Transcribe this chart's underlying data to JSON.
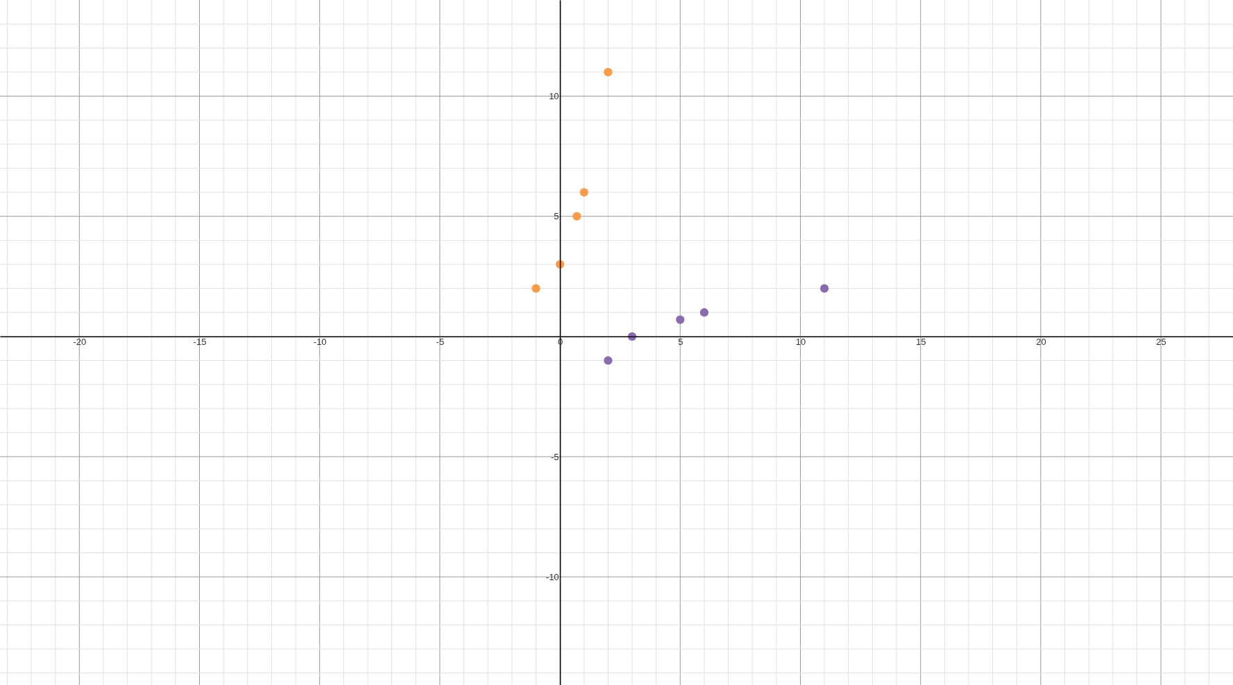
{
  "chart_data": {
    "type": "scatter",
    "series": [
      {
        "color": "#f89c4c",
        "x": [
          2,
          1,
          0.7,
          0,
          -1
        ],
        "values": [
          11,
          6,
          5,
          3,
          2
        ]
      },
      {
        "color": "#8a6bad",
        "x": [
          2,
          3,
          5,
          6,
          11
        ],
        "values": [
          -1,
          0,
          0.7,
          1,
          2
        ]
      }
    ],
    "marker": "circle",
    "xlim": [
      -23.3,
      28
    ],
    "ylim": [
      -14.5,
      14
    ],
    "xticks": [
      {
        "value": -23,
        "label": null
      },
      {
        "value": -22,
        "label": null
      },
      {
        "value": -21,
        "label": null
      },
      -20,
      {
        "value": -19,
        "label": null
      },
      {
        "value": -18,
        "label": null
      },
      {
        "value": -17,
        "label": null
      },
      {
        "value": -16,
        "label": null
      },
      -15,
      {
        "value": -14,
        "label": null
      },
      {
        "value": -13,
        "label": null
      },
      {
        "value": -12,
        "label": null
      },
      {
        "value": -11,
        "label": null
      },
      -10,
      {
        "value": -9,
        "label": null
      },
      {
        "value": -8,
        "label": null
      },
      {
        "value": -7,
        "label": null
      },
      {
        "value": -6,
        "label": null
      },
      -5,
      {
        "value": -4,
        "label": null
      },
      {
        "value": -3,
        "label": null
      },
      {
        "value": -2,
        "label": null
      },
      {
        "value": -1,
        "label": null
      },
      0,
      {
        "value": 1,
        "label": null
      },
      {
        "value": 2,
        "label": null
      },
      {
        "value": 3,
        "label": null
      },
      {
        "value": 4,
        "label": null
      },
      5,
      {
        "value": 6,
        "label": null
      },
      {
        "value": 7,
        "label": null
      },
      {
        "value": 8,
        "label": null
      },
      {
        "value": 9,
        "label": null
      },
      10,
      {
        "value": 11,
        "label": null
      },
      {
        "value": 12,
        "label": null
      },
      {
        "value": 13,
        "label": null
      },
      {
        "value": 14,
        "label": null
      },
      15,
      {
        "value": 16,
        "label": null
      },
      {
        "value": 17,
        "label": null
      },
      {
        "value": 18,
        "label": null
      },
      {
        "value": 19,
        "label": null
      },
      20,
      {
        "value": 21,
        "label": null
      },
      {
        "value": 22,
        "label": null
      },
      {
        "value": 23,
        "label": null
      },
      {
        "value": 24,
        "label": null
      },
      25,
      {
        "value": 26,
        "label": null
      },
      {
        "value": 27,
        "label": null
      }
    ],
    "yticks": [
      {
        "value": -14,
        "label": null
      },
      {
        "value": -13,
        "label": null
      },
      {
        "value": -12,
        "label": null
      },
      {
        "value": -11,
        "label": null
      },
      -10,
      {
        "value": -9,
        "label": null
      },
      {
        "value": -8,
        "label": null
      },
      {
        "value": -7,
        "label": null
      },
      {
        "value": -6,
        "label": null
      },
      -5,
      {
        "value": -4,
        "label": null
      },
      {
        "value": -3,
        "label": null
      },
      {
        "value": -2,
        "label": null
      },
      {
        "value": -1,
        "label": null
      },
      {
        "value": 0,
        "label": null
      },
      {
        "value": 1,
        "label": null
      },
      {
        "value": 2,
        "label": null
      },
      {
        "value": 3,
        "label": null
      },
      {
        "value": 4,
        "label": null
      },
      5,
      {
        "value": 6,
        "label": null
      },
      {
        "value": 7,
        "label": null
      },
      {
        "value": 8,
        "label": null
      },
      {
        "value": 9,
        "label": null
      },
      10,
      {
        "value": 11,
        "label": null
      },
      {
        "value": 12,
        "label": null
      },
      {
        "value": 13,
        "label": null
      }
    ],
    "grid": true
  }
}
